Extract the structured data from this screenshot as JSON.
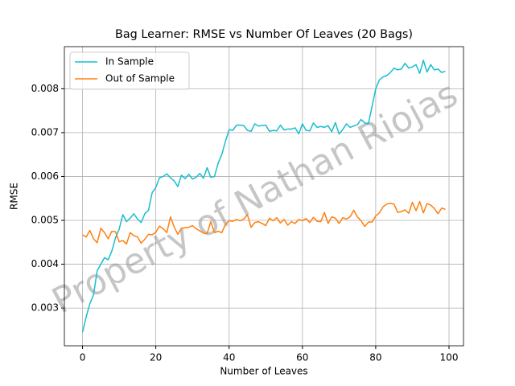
{
  "chart_data": {
    "type": "line",
    "title": "Bag Learner: RMSE vs Number Of Leaves (20 Bags)",
    "xlabel": "Number of Leaves",
    "ylabel": "RMSE",
    "watermark": "Property of Nathan Riojas",
    "x": [
      0,
      1,
      2,
      3,
      4,
      5,
      6,
      7,
      8,
      9,
      10,
      11,
      12,
      13,
      14,
      15,
      16,
      17,
      18,
      19,
      20,
      21,
      22,
      23,
      24,
      25,
      26,
      27,
      28,
      29,
      30,
      31,
      32,
      33,
      34,
      35,
      36,
      37,
      38,
      39,
      40,
      41,
      42,
      43,
      44,
      45,
      46,
      47,
      48,
      49,
      50,
      51,
      52,
      53,
      54,
      55,
      56,
      57,
      58,
      59,
      60,
      61,
      62,
      63,
      64,
      65,
      66,
      67,
      68,
      69,
      70,
      71,
      72,
      73,
      74,
      75,
      76,
      77,
      78,
      79,
      80,
      81,
      82,
      83,
      84,
      85,
      86,
      87,
      88,
      89,
      90,
      91,
      92,
      93,
      94,
      95,
      96,
      97,
      98,
      99
    ],
    "series": [
      {
        "name": "In Sample",
        "color": "#17becf",
        "values": [
          0.00245,
          0.0028,
          0.0031,
          0.0033,
          0.00385,
          0.004,
          0.00415,
          0.0041,
          0.0043,
          0.0046,
          0.0048,
          0.00513,
          0.00497,
          0.00505,
          0.00515,
          0.00503,
          0.00495,
          0.00515,
          0.00523,
          0.00563,
          0.00575,
          0.00597,
          0.006,
          0.00606,
          0.00597,
          0.0059,
          0.00577,
          0.00603,
          0.00595,
          0.00605,
          0.00594,
          0.00598,
          0.00607,
          0.00596,
          0.0062,
          0.00598,
          0.006,
          0.0063,
          0.0065,
          0.0068,
          0.00707,
          0.00705,
          0.00717,
          0.00717,
          0.00716,
          0.00705,
          0.00703,
          0.0072,
          0.00715,
          0.00716,
          0.00717,
          0.00703,
          0.00705,
          0.00704,
          0.00717,
          0.00706,
          0.00708,
          0.00708,
          0.00711,
          0.00697,
          0.0072,
          0.00705,
          0.00704,
          0.00722,
          0.00712,
          0.00714,
          0.00712,
          0.00716,
          0.00702,
          0.00723,
          0.00697,
          0.00707,
          0.0072,
          0.00712,
          0.00715,
          0.00718,
          0.0073,
          0.00722,
          0.0072,
          0.0076,
          0.008,
          0.0082,
          0.00827,
          0.0083,
          0.00837,
          0.00847,
          0.00843,
          0.00845,
          0.00858,
          0.00847,
          0.0085,
          0.00855,
          0.00835,
          0.00865,
          0.00838,
          0.00855,
          0.00843,
          0.00845,
          0.00837,
          0.0084
        ]
      },
      {
        "name": "Out of Sample",
        "color": "#ff7f0e",
        "values": [
          0.00467,
          0.00462,
          0.00477,
          0.00458,
          0.00449,
          0.00482,
          0.00472,
          0.00458,
          0.00475,
          0.00474,
          0.00451,
          0.00454,
          0.00446,
          0.00472,
          0.00465,
          0.00462,
          0.00448,
          0.00457,
          0.00468,
          0.00467,
          0.00473,
          0.00487,
          0.00481,
          0.00472,
          0.00508,
          0.00485,
          0.00468,
          0.00482,
          0.00483,
          0.00484,
          0.00488,
          0.00481,
          0.00476,
          0.00471,
          0.0047,
          0.00497,
          0.00472,
          0.00475,
          0.00472,
          0.00491,
          0.00499,
          0.00498,
          0.00502,
          0.00499,
          0.00503,
          0.00513,
          0.00484,
          0.00495,
          0.00497,
          0.00493,
          0.00488,
          0.00505,
          0.00499,
          0.00506,
          0.00494,
          0.00502,
          0.00489,
          0.00497,
          0.00493,
          0.00502,
          0.00499,
          0.00504,
          0.00495,
          0.00507,
          0.00498,
          0.00497,
          0.00518,
          0.00493,
          0.00508,
          0.00505,
          0.00493,
          0.00506,
          0.00503,
          0.00508,
          0.00523,
          0.00508,
          0.00499,
          0.00486,
          0.00496,
          0.00496,
          0.0051,
          0.00517,
          0.00531,
          0.00537,
          0.00539,
          0.00537,
          0.00518,
          0.0052,
          0.00524,
          0.00516,
          0.00541,
          0.00522,
          0.00543,
          0.00517,
          0.00538,
          0.00535,
          0.00527,
          0.00515,
          0.00528,
          0.00525
        ]
      }
    ],
    "xlim": [
      -4.95,
      103.95
    ],
    "xticks": [
      0,
      20,
      40,
      60,
      80,
      100
    ],
    "ylim": [
      0.00214,
      0.00896
    ],
    "yticks": [
      0.003,
      0.004,
      0.005,
      0.006,
      0.007,
      0.008
    ],
    "grid": true,
    "legend": "upper-left"
  }
}
